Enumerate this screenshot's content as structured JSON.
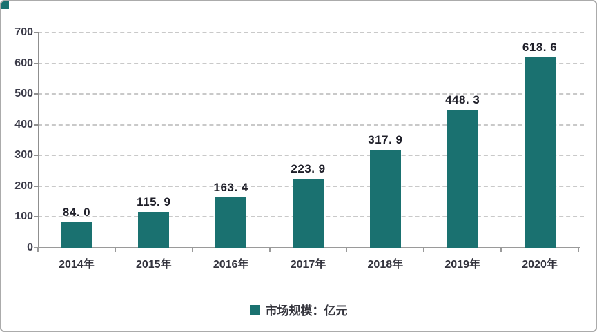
{
  "frame": {
    "background": "#ffffff",
    "border_color": "#ababab",
    "corner_chip_color": "#1a7170"
  },
  "chart_data": {
    "type": "bar",
    "title": "",
    "categories": [
      "2014年",
      "2015年",
      "2016年",
      "2017年",
      "2018年",
      "2019年",
      "2020年"
    ],
    "values": [
      84.0,
      115.9,
      163.4,
      223.9,
      317.9,
      448.3,
      618.6
    ],
    "value_labels": [
      "84. 0",
      "115. 9",
      "163. 4",
      "223. 9",
      "317. 9",
      "448. 3",
      "618. 6"
    ],
    "xlabel": "",
    "ylabel": "",
    "ylim": [
      0,
      700
    ],
    "yticks": [
      0,
      100,
      200,
      300,
      400,
      500,
      600,
      700
    ],
    "grid": "horizontal-dashed",
    "bar_color": "#1a7170",
    "legend": {
      "label": "市场规模：亿元",
      "position": "bottom-center",
      "swatch_color": "#1a7170"
    }
  },
  "colors": {
    "axis": "#9a9a9a",
    "gridline": "#c9c9c9",
    "value_label": "#20202a",
    "y_tick_label": "#3c3c4a",
    "x_tick_label": "#33333d"
  }
}
